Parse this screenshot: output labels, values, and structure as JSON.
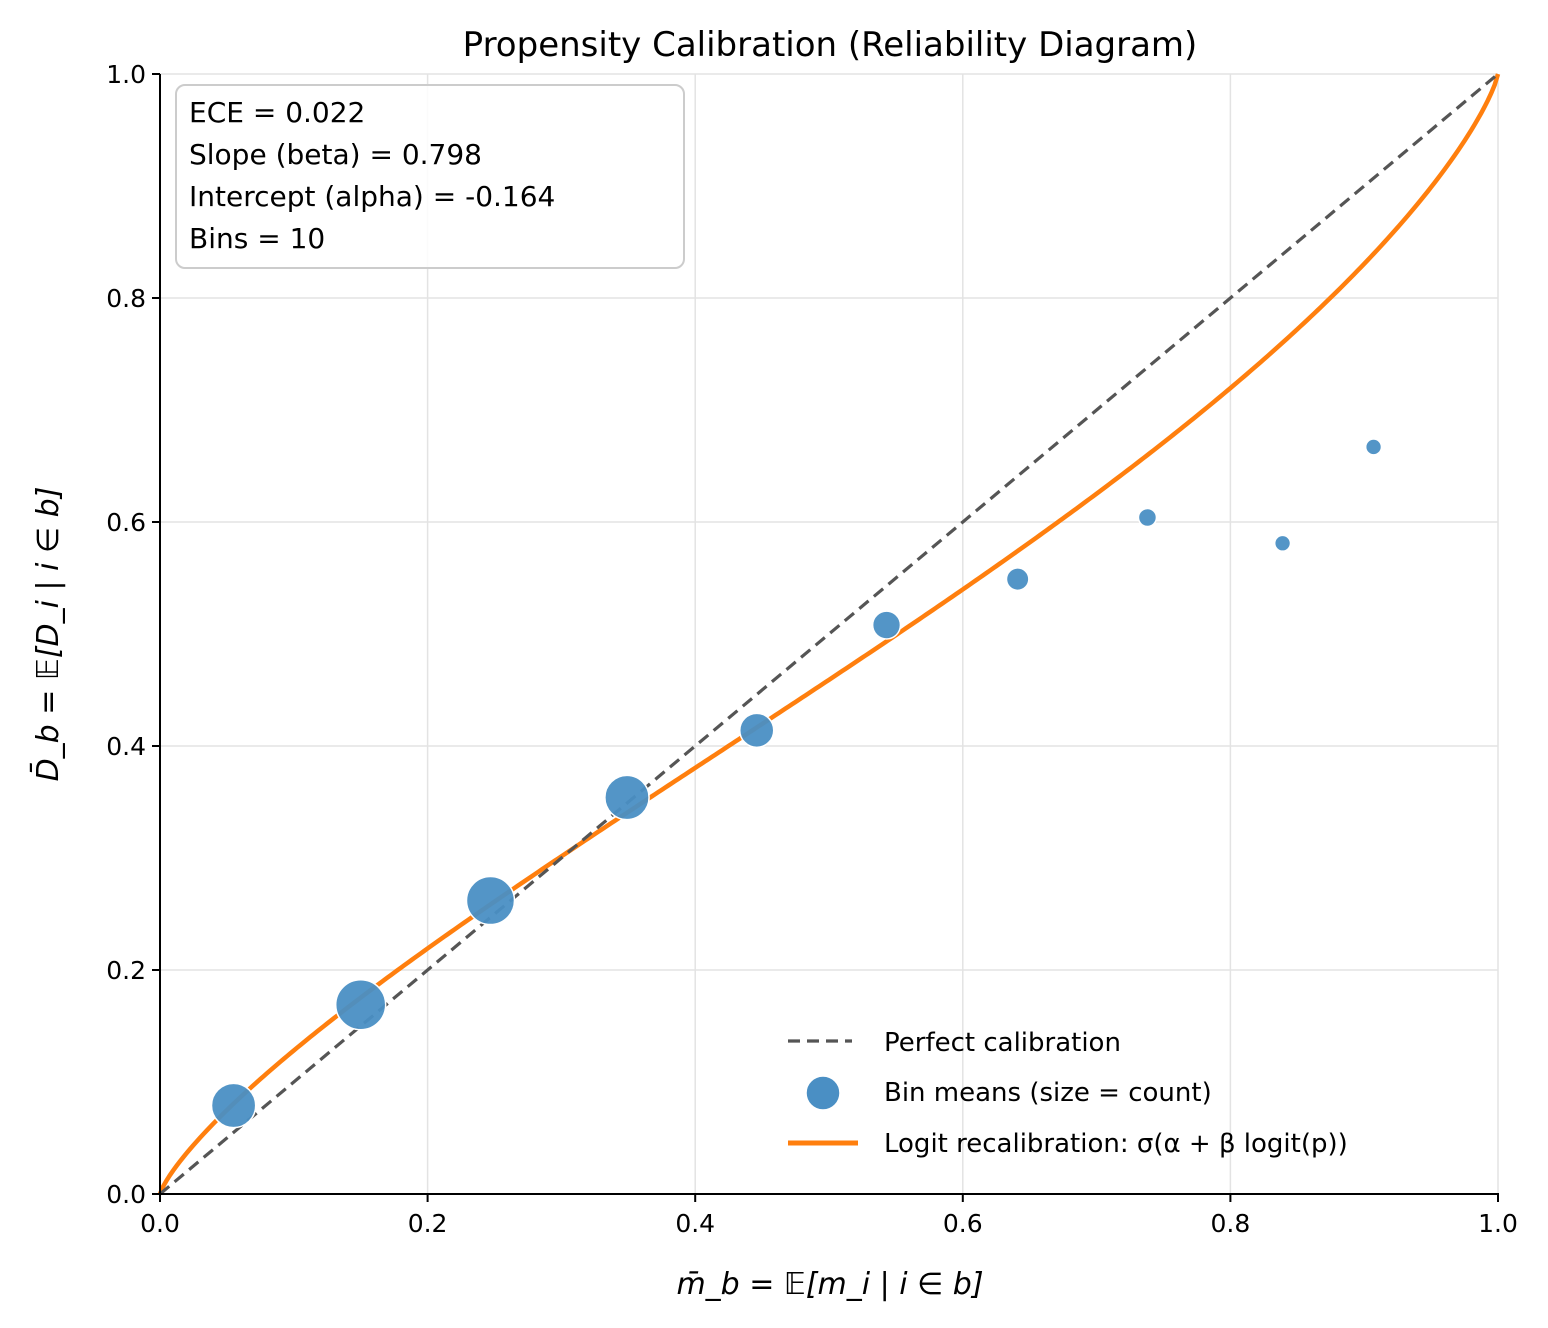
{
  "chart_data": {
    "type": "scatter",
    "title": "Propensity Calibration (Reliability Diagram)",
    "xlabel": "m̄_b = 𝔼[m_i | i ∈ b]",
    "ylabel": "D̄_b = 𝔼[D_i | i ∈ b]",
    "xlim": [
      0.0,
      1.0
    ],
    "ylim": [
      0.0,
      1.0
    ],
    "grid": true,
    "x_ticks": [
      0.0,
      0.2,
      0.4,
      0.6,
      0.8,
      1.0
    ],
    "x_tick_labels": [
      "0.0",
      "0.2",
      "0.4",
      "0.6",
      "0.8",
      "1.0"
    ],
    "y_ticks": [
      0.0,
      0.2,
      0.4,
      0.6,
      0.8,
      1.0
    ],
    "y_tick_labels": [
      "0.0",
      "0.2",
      "0.4",
      "0.6",
      "0.8",
      "1.0"
    ],
    "stats_box": {
      "placement": "top-left",
      "lines": [
        "ECE = 0.022",
        "Slope (beta) = 0.798",
        "Intercept (alpha) = -0.164",
        "Bins = 10"
      ]
    },
    "recalibration": {
      "alpha": -0.164,
      "beta": 0.798
    },
    "series": [
      {
        "name": "Perfect calibration",
        "kind": "line",
        "style": "dashed",
        "color": "#555555",
        "x": [
          0.0,
          1.0
        ],
        "y": [
          0.0,
          1.0
        ]
      },
      {
        "name": "Bin means (size = count)",
        "kind": "scatter",
        "color": "#4a8fc4",
        "x": [
          0.055,
          0.15,
          0.247,
          0.349,
          0.446,
          0.543,
          0.641,
          0.738,
          0.839,
          0.907
        ],
        "y": [
          0.079,
          0.169,
          0.262,
          0.354,
          0.414,
          0.508,
          0.549,
          0.604,
          0.581,
          0.667
        ],
        "relative_count": [
          0.78,
          1.0,
          0.92,
          0.78,
          0.46,
          0.31,
          0.2,
          0.13,
          0.1,
          0.1
        ]
      },
      {
        "name": "Logit recalibration: σ(α + β logit(p))",
        "kind": "curve",
        "style": "solid",
        "color": "#ff7f0e"
      }
    ],
    "legend": {
      "placement": "bottom-right",
      "entries": [
        "Perfect calibration",
        "Bin means (size = count)",
        "Logit recalibration: σ(α + β logit(p))"
      ]
    }
  }
}
